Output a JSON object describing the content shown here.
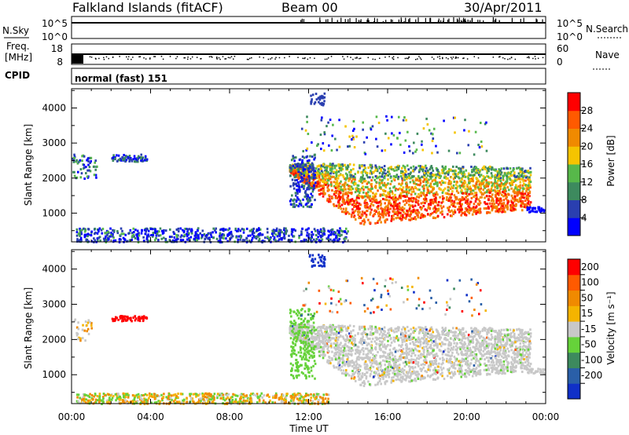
{
  "header": {
    "station": "Falkland Islands (fitACF)",
    "beam": "Beam 00",
    "date": "30/Apr/2011"
  },
  "nsky_panel": {
    "left_label": "N.Sky",
    "right_label": "N.Search",
    "left_ticks": [
      "10^5",
      "10^0"
    ],
    "right_ticks": [
      "10^5",
      "10^0"
    ]
  },
  "freq_panel": {
    "left_label_1": "Freq.",
    "left_label_2": "[MHz]",
    "right_label": "Nave",
    "left_ticks": [
      "18",
      "8"
    ],
    "right_ticks": [
      "60",
      "0"
    ]
  },
  "cpid_panel": {
    "label": "CPID",
    "mode_text": "normal (fast) 151"
  },
  "x_axis": {
    "label": "Time UT",
    "ticks": [
      "00:00",
      "04:00",
      "08:00",
      "12:00",
      "16:00",
      "20:00",
      "00:00"
    ]
  },
  "chart_data": [
    {
      "type": "heatmap",
      "name": "power",
      "ylabel": "Slant Range [km]",
      "xlabel": "Time UT",
      "y_ticks": [
        1000,
        2000,
        3000,
        4000
      ],
      "colorbar_label": "Power [dB]",
      "colorbar_ticks": [
        4,
        8,
        12,
        16,
        20,
        24,
        28
      ],
      "colors": [
        "#0000ff",
        "#2a3fb0",
        "#3d8a5e",
        "#57b84a",
        "#f5c400",
        "#f08a00",
        "#ff5a00",
        "#ff0000"
      ]
    },
    {
      "type": "heatmap",
      "name": "velocity",
      "ylabel": "Slant Range [km]",
      "xlabel": "Time UT",
      "y_ticks": [
        1000,
        2000,
        3000,
        4000
      ],
      "colorbar_label": "Velocity [m s⁻¹]",
      "colorbar_ticks": [
        200,
        100,
        50,
        15,
        -15,
        -50,
        -100,
        -200
      ],
      "colors": [
        "#1030c8",
        "#2a5fa8",
        "#3d8a5e",
        "#66d23a",
        "#c8c8c8",
        "#f5b400",
        "#f08a00",
        "#ff5a00",
        "#ff0000"
      ]
    }
  ]
}
